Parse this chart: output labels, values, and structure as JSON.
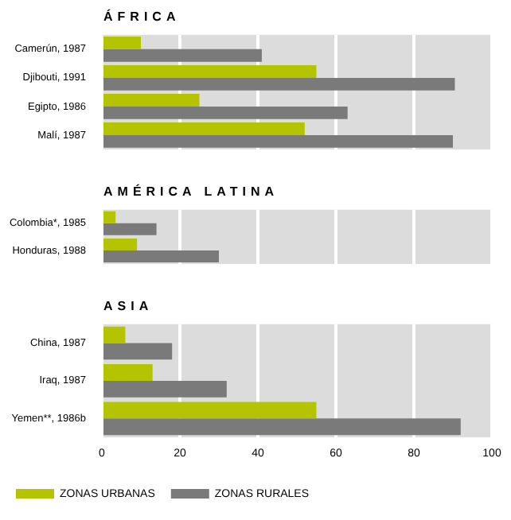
{
  "chart_data": [
    {
      "type": "bar",
      "orientation": "horizontal",
      "title": "ÁFRICA",
      "categories": [
        "Camerún, 1987",
        "Djibouti, 1991",
        "Egipto, 1986",
        "Malí, 1987"
      ],
      "series": [
        {
          "color": "#b5c400",
          "values": [
            10,
            55,
            25,
            52
          ]
        },
        {
          "color": "#7a7a7a",
          "values": [
            41,
            90.5,
            63,
            90
          ]
        }
      ],
      "xlim": [
        0,
        100
      ],
      "xticks": [
        0,
        20,
        40,
        60,
        80,
        100
      ],
      "grid": "x",
      "tick_labels": "y",
      "legend": false
    },
    {
      "type": "bar",
      "orientation": "horizontal",
      "title": "AMÉRICA LATINA",
      "categories": [
        "Colombia*, 1985",
        "Honduras, 1988"
      ],
      "series": [
        {
          "color": "#b5c400",
          "values": [
            3.5,
            9
          ]
        },
        {
          "color": "#7a7a7a",
          "values": [
            14,
            30
          ]
        }
      ],
      "xlim": [
        0,
        100
      ],
      "xticks": [
        0,
        20,
        40,
        60,
        80,
        100
      ],
      "grid": "x",
      "tick_labels": "y",
      "legend": false
    },
    {
      "type": "bar",
      "orientation": "horizontal",
      "title": "ASIA",
      "categories": [
        "China, 1987",
        "Iraq, 1987",
        "Yemen**, 1986b"
      ],
      "series": [
        {
          "name": "ZONAS URBANAS",
          "color": "#b5c400",
          "values": [
            6,
            13,
            55
          ]
        },
        {
          "name": "ZONAS RURALES",
          "color": "#7a7a7a",
          "values": [
            18,
            32,
            92
          ]
        }
      ],
      "xlim": [
        0,
        100
      ],
      "xticks": [
        0,
        20,
        40,
        60,
        80,
        100
      ],
      "grid": "x",
      "legend": "bottom"
    }
  ]
}
